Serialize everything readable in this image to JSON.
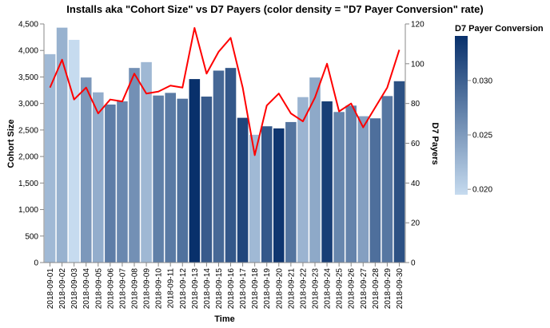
{
  "chart_data": {
    "type": "bar",
    "title": "Installs aka \"Cohort Size\" vs D7 Payers (color density = \"D7 Payer Conversion\" rate)",
    "xlabel": "Time",
    "ylabel": "Cohort Size",
    "y2label": "D7 Payers",
    "ylim": [
      0,
      4500
    ],
    "y2lim": [
      0,
      120
    ],
    "yticks": [
      "0",
      "500",
      "1,000",
      "1,500",
      "2,000",
      "2,500",
      "3,000",
      "3,500",
      "4,000",
      "4,500"
    ],
    "y2ticks": [
      "0",
      "20",
      "40",
      "60",
      "80",
      "100",
      "120"
    ],
    "categories": [
      "2018-09-01",
      "2018-09-02",
      "2018-09-03",
      "2018-09-04",
      "2018-09-05",
      "2018-09-06",
      "2018-09-07",
      "2018-09-08",
      "2018-09-09",
      "2018-09-10",
      "2018-09-11",
      "2018-09-12",
      "2018-09-13",
      "2018-09-14",
      "2018-09-15",
      "2018-09-16",
      "2018-09-17",
      "2018-09-18",
      "2018-09-19",
      "2018-09-20",
      "2018-09-21",
      "2018-09-22",
      "2018-09-23",
      "2018-09-24",
      "2018-09-25",
      "2018-09-26",
      "2018-09-27",
      "2018-09-28",
      "2018-09-29",
      "2018-09-30"
    ],
    "series": [
      {
        "name": "Cohort Size",
        "type": "bar",
        "values": [
          3930,
          4430,
          4200,
          3490,
          3210,
          2980,
          3040,
          3670,
          3780,
          3150,
          3200,
          3090,
          3460,
          3130,
          3620,
          3670,
          2730,
          2410,
          2570,
          2530,
          2650,
          3120,
          3490,
          3040,
          2840,
          2960,
          2760,
          2720,
          3140,
          3420
        ]
      },
      {
        "name": "D7 Payers",
        "type": "line",
        "color": "#ff0000",
        "values": [
          88,
          102,
          82,
          88,
          75,
          82,
          81,
          95,
          85,
          86,
          89,
          88,
          118,
          95,
          106,
          113,
          88,
          54,
          79,
          85,
          75,
          71,
          83,
          100,
          76,
          80,
          68,
          78,
          88,
          107
        ]
      },
      {
        "name": "D7 Payer Conversion",
        "type": "color",
        "values": [
          0.0224,
          0.023,
          0.0195,
          0.0252,
          0.0234,
          0.0275,
          0.0266,
          0.0259,
          0.0225,
          0.0273,
          0.0278,
          0.0285,
          0.0341,
          0.0304,
          0.0293,
          0.0308,
          0.0322,
          0.0224,
          0.0307,
          0.0336,
          0.0283,
          0.0228,
          0.0238,
          0.0329,
          0.0268,
          0.027,
          0.0246,
          0.0287,
          0.028,
          0.0313
        ]
      }
    ],
    "legend": {
      "title": "D7 Payer Conversion",
      "ticks": [
        "0.020",
        "0.025",
        "0.030"
      ],
      "domain": [
        0.0195,
        0.0341
      ],
      "color_low": "#c6dbef",
      "color_high": "#08306b",
      "placement": "right"
    }
  }
}
